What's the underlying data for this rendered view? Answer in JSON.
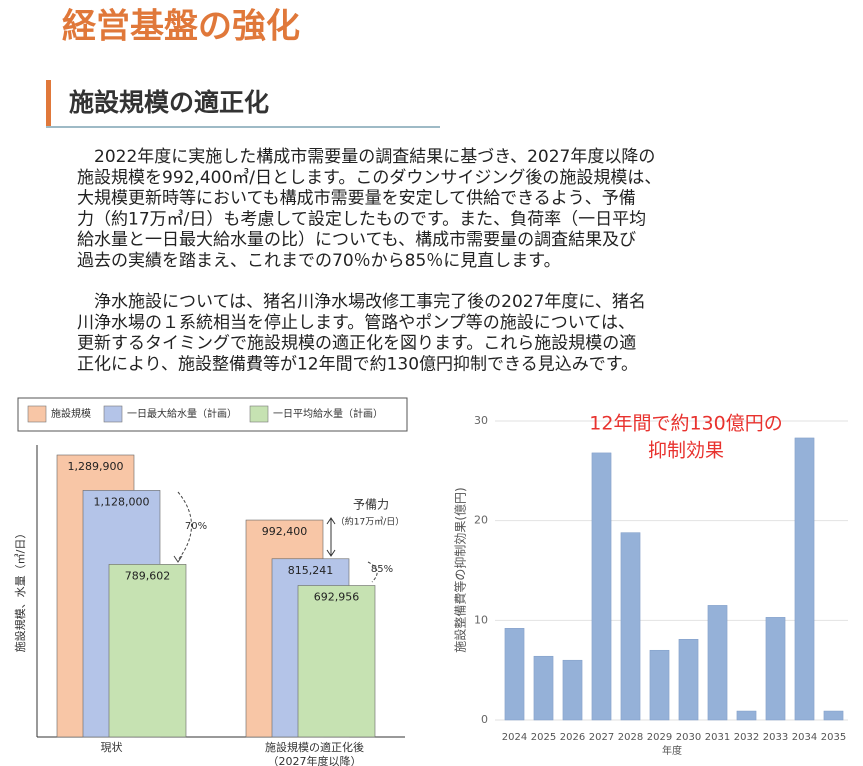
{
  "header": {
    "title": "経営基盤の強化",
    "section": "施設規模の適正化"
  },
  "paragraphs": [
    [
      "2022年度に実施した構成市需要量の調査結果に基づき、2027年度以降の",
      "施設規模を992,400㎥/日とします。このダウンサイジング後の施設規模は、",
      "大規模更新時等においても構成市需要量を安定して供給できるよう、予備",
      "力（約17万㎥/日）も考慮して設定したものです。また、負荷率（一日平均",
      "給水量と一日最大給水量の比）についても、構成市需要量の調査結果及び",
      "過去の実績を踏まえ、これまでの70％から85％に見直します。"
    ],
    [
      "浄水施設については、猪名川浄水場改修工事完了後の2027年度に、猪名",
      "川浄水場の１系統相当を停止します。管路やポンプ等の施設については、",
      "更新するタイミングで施設規模の適正化を図ります。これら施設規模の適",
      "正化により、施設整備費等が12年間で約130億円抑制できる見込みです。"
    ]
  ],
  "chart_data": [
    {
      "type": "bar",
      "ylabel": "施設規模、水量（㎥/日）",
      "categories": [
        "現状",
        "施設規模の適正化後\n（2027年度以降）"
      ],
      "series": [
        {
          "name": "施設規模",
          "color": "#f8c6a6",
          "values": [
            1289900,
            992400
          ],
          "value_labels": [
            "1,289,900",
            "992,400"
          ]
        },
        {
          "name": "一日最大給水量（計画）",
          "color": "#b4c4e8",
          "values": [
            1128000,
            815241
          ],
          "value_labels": [
            "1,128,000",
            "815,241"
          ]
        },
        {
          "name": "一日平均給水量（計画）",
          "color": "#c6e2b2",
          "values": [
            789602,
            692956
          ],
          "value_labels": [
            "789,602",
            "692,956"
          ]
        }
      ],
      "ylim": [
        0,
        1450000
      ],
      "annotations": [
        "70%",
        "85%",
        "予備力",
        "（約17万㎥/日）"
      ]
    },
    {
      "type": "bar",
      "xlabel": "年度",
      "ylabel": "施設整備費等の抑制効果(億円)",
      "annotation": [
        "12年間で約130億円の",
        "抑制効果"
      ],
      "categories": [
        "2024",
        "2025",
        "2026",
        "2027",
        "2028",
        "2029",
        "2030",
        "2031",
        "2032",
        "2033",
        "2034",
        "2035"
      ],
      "values": [
        9.2,
        6.4,
        6.0,
        26.8,
        18.8,
        7.0,
        8.1,
        11.5,
        0.9,
        10.3,
        28.3,
        0.9
      ],
      "color": "#95b1d8",
      "ylim": [
        0,
        30
      ],
      "yticks": [
        0,
        10,
        20,
        30
      ],
      "grid": true
    }
  ]
}
